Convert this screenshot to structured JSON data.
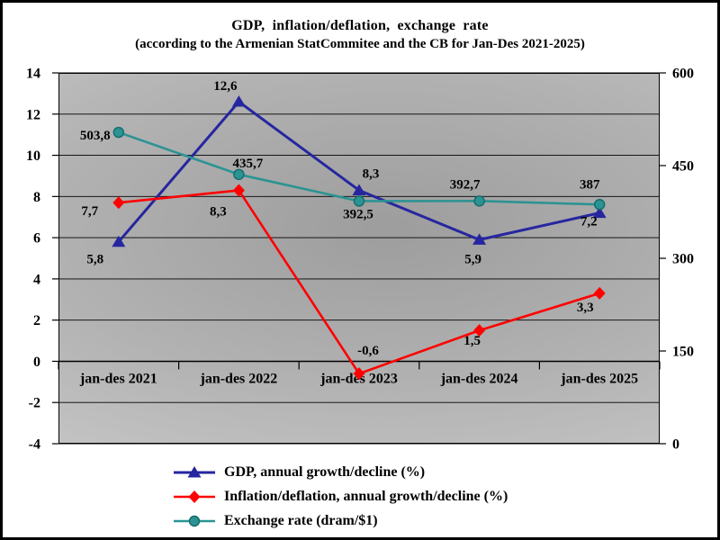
{
  "title": {
    "line1": "GDP, inflation/deflation, exchange rate",
    "line2": "(according to the Armenian StatCommitee and the CB for Jan-Des 2021-2025)"
  },
  "chart_data": {
    "type": "line",
    "title": "GDP, inflation/deflation, exchange rate",
    "subtitle": "(according to the Armenian StatCommitee and the CB for Jan-Des 2021-2025)",
    "categories": [
      "jan-des 2021",
      "jan-des 2022",
      "jan-des 2023",
      "jan-des 2024",
      "jan-des 2025"
    ],
    "series": [
      {
        "name": "GDP, annual growth/decline (%)",
        "axis": "left",
        "color": "#2626A0",
        "marker": "triangle",
        "values": [
          5.8,
          12.6,
          8.3,
          5.9,
          7.2
        ],
        "labels": [
          "5,8",
          "12,6",
          "8,3",
          "5,9",
          "7,2"
        ]
      },
      {
        "name": "Inflation/deflation, annual growth/decline (%)",
        "axis": "left",
        "color": "#FF0000",
        "marker": "diamond",
        "values": [
          7.7,
          8.3,
          -0.6,
          1.5,
          3.3
        ],
        "labels": [
          "7,7",
          "8,3",
          "-0,6",
          "1,5",
          "3,3"
        ]
      },
      {
        "name": "Exchange rate (dram/$1)",
        "axis": "right",
        "color": "#2B9393",
        "marker": "circle",
        "marker_stroke": "#156B6B",
        "values": [
          503.8,
          435.7,
          392.5,
          392.7,
          387
        ],
        "labels": [
          "503,8",
          "435,7",
          "392,5",
          "392,7",
          "387"
        ]
      }
    ],
    "left_axis": {
      "min": -4,
      "max": 14,
      "step": 2,
      "ticks": [
        "-4",
        "-2",
        "0",
        "2",
        "4",
        "6",
        "8",
        "10",
        "12",
        "14"
      ]
    },
    "right_axis": {
      "min": 0,
      "max": 600,
      "step": 150,
      "ticks": [
        "0",
        "150",
        "300",
        "450",
        "600"
      ]
    },
    "grid": true,
    "legend_position": "bottom",
    "label_color": "#000000"
  }
}
